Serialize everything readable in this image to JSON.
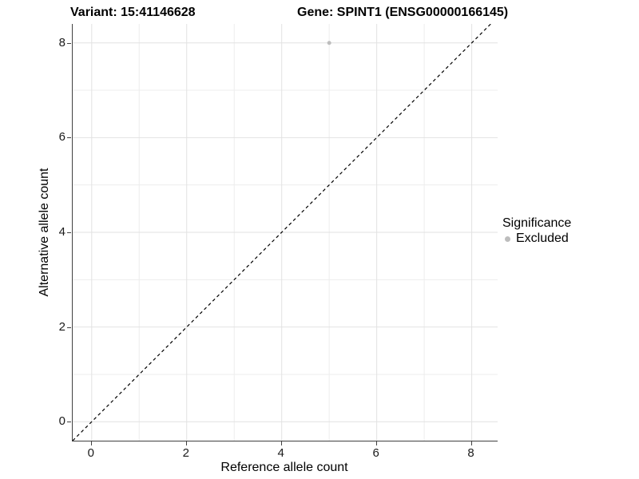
{
  "title": {
    "variant": "Variant: 15:41146628",
    "gene": "Gene: SPINT1 (ENSG00000166145)"
  },
  "chart_data": {
    "type": "scatter",
    "title": "Variant: 15:41146628   Gene: SPINT1 (ENSG00000166145)",
    "xlabel": "Reference allele count",
    "ylabel": "Alternative allele count",
    "xlim": [
      -0.4,
      8.545
    ],
    "ylim": [
      -0.4,
      8.4
    ],
    "x_ticks": [
      0,
      2,
      4,
      6,
      8
    ],
    "y_ticks": [
      0,
      2,
      4,
      6,
      8
    ],
    "minor_grid_x": [
      1,
      3,
      5,
      7
    ],
    "minor_grid_y": [
      1,
      3,
      5,
      7
    ],
    "grid": true,
    "points": [
      {
        "x": 5,
        "y": 8,
        "series": "Excluded"
      }
    ],
    "reference_line": {
      "type": "identity y=x",
      "style": "dashed",
      "color": "#000000"
    },
    "legend": {
      "position": "right",
      "title": "Significance",
      "items": [
        {
          "label": "Excluded",
          "color": "#bdbdbd"
        }
      ]
    }
  },
  "colors": {
    "point": "#bdbdbd",
    "grid_major": "#e2e2e2",
    "grid_minor": "#ededed",
    "axis_line": "#404040",
    "dashed_line": "#000000",
    "text": "#000000"
  }
}
